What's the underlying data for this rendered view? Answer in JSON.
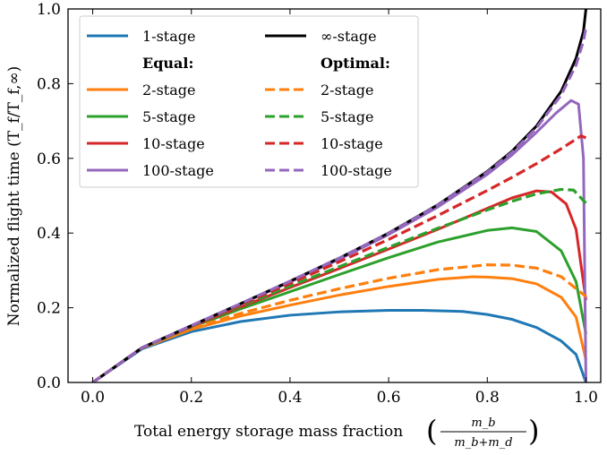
{
  "chart_data": {
    "type": "line",
    "title": "",
    "xlabel": "Total energy storage mass fraction",
    "xlabel_math": {
      "open": "(",
      "numerator": "m_b",
      "denominator": "m_b+m_d",
      "close": ")"
    },
    "ylabel": "Normalized flight time (T_f/T_f,∞)",
    "xlim": [
      -0.05,
      1.03
    ],
    "ylim": [
      0,
      1.0
    ],
    "xticks": [
      0.0,
      0.2,
      0.4,
      0.6,
      0.8,
      1.0
    ],
    "xtick_labels": [
      "0.0",
      "0.2",
      "0.4",
      "0.6",
      "0.8",
      "1.0"
    ],
    "yticks": [
      0.0,
      0.2,
      0.4,
      0.6,
      0.8,
      1.0
    ],
    "ytick_labels": [
      "0.0",
      "0.2",
      "0.4",
      "0.6",
      "0.8",
      "1.0"
    ],
    "grid": false,
    "legend": {
      "placement": "top-left",
      "heading_equal": "Equal:",
      "heading_optimal": "Optimal:"
    },
    "series": [
      {
        "name": "1-stage",
        "group": "equal",
        "color": "#1f77b4",
        "style": "solid",
        "x": [
          0,
          0.1,
          0.2,
          0.3,
          0.4,
          0.5,
          0.6,
          0.667,
          0.75,
          0.8,
          0.85,
          0.9,
          0.95,
          0.98,
          1.0
        ],
        "y": [
          0,
          0.09,
          0.136,
          0.163,
          0.18,
          0.189,
          0.193,
          0.193,
          0.19,
          0.182,
          0.169,
          0.147,
          0.111,
          0.075,
          0.0
        ]
      },
      {
        "name": "2-stage",
        "group": "equal",
        "color": "#ff7f0e",
        "style": "solid",
        "x": [
          0,
          0.1,
          0.2,
          0.3,
          0.4,
          0.5,
          0.6,
          0.7,
          0.77,
          0.8,
          0.85,
          0.9,
          0.95,
          0.98,
          1.0
        ],
        "y": [
          0,
          0.092,
          0.142,
          0.178,
          0.207,
          0.234,
          0.257,
          0.276,
          0.283,
          0.282,
          0.278,
          0.264,
          0.228,
          0.175,
          0.06
        ]
      },
      {
        "name": "5-stage",
        "group": "equal",
        "color": "#2ca02c",
        "style": "solid",
        "x": [
          0,
          0.1,
          0.2,
          0.3,
          0.4,
          0.5,
          0.6,
          0.7,
          0.8,
          0.85,
          0.9,
          0.95,
          0.98,
          1.0
        ],
        "y": [
          0,
          0.093,
          0.148,
          0.197,
          0.243,
          0.289,
          0.334,
          0.376,
          0.407,
          0.414,
          0.404,
          0.352,
          0.27,
          0.13
        ]
      },
      {
        "name": "10-stage",
        "group": "equal",
        "color": "#d62728",
        "style": "solid",
        "x": [
          0,
          0.1,
          0.2,
          0.3,
          0.4,
          0.5,
          0.6,
          0.7,
          0.8,
          0.85,
          0.9,
          0.93,
          0.96,
          0.98,
          1.0
        ],
        "y": [
          0,
          0.093,
          0.15,
          0.202,
          0.254,
          0.305,
          0.357,
          0.41,
          0.466,
          0.494,
          0.513,
          0.51,
          0.478,
          0.41,
          0.22
        ]
      },
      {
        "name": "100-stage",
        "group": "equal",
        "color": "#9467bd",
        "style": "solid",
        "x": [
          0,
          0.1,
          0.2,
          0.3,
          0.4,
          0.5,
          0.6,
          0.7,
          0.8,
          0.85,
          0.9,
          0.94,
          0.97,
          0.985,
          0.995,
          1.0
        ],
        "y": [
          0,
          0.093,
          0.152,
          0.21,
          0.269,
          0.33,
          0.396,
          0.47,
          0.557,
          0.609,
          0.67,
          0.722,
          0.755,
          0.745,
          0.6,
          0.0
        ]
      },
      {
        "name": "∞-stage",
        "group": "infinite",
        "color": "#000000",
        "style": "solid",
        "x": [
          0,
          0.1,
          0.2,
          0.3,
          0.4,
          0.5,
          0.6,
          0.7,
          0.8,
          0.85,
          0.9,
          0.95,
          0.98,
          0.995,
          1.0
        ],
        "y": [
          0,
          0.093,
          0.152,
          0.211,
          0.271,
          0.333,
          0.4,
          0.476,
          0.565,
          0.619,
          0.687,
          0.78,
          0.868,
          0.94,
          1.0
        ]
      },
      {
        "name": "2-stage",
        "group": "optimal",
        "color": "#ff7f0e",
        "style": "dashed",
        "x": [
          0,
          0.1,
          0.2,
          0.3,
          0.4,
          0.5,
          0.6,
          0.7,
          0.8,
          0.85,
          0.9,
          0.95,
          1.0
        ],
        "y": [
          0,
          0.093,
          0.145,
          0.185,
          0.22,
          0.251,
          0.279,
          0.302,
          0.315,
          0.314,
          0.306,
          0.283,
          0.23
        ]
      },
      {
        "name": "5-stage",
        "group": "optimal",
        "color": "#2ca02c",
        "style": "dashed",
        "x": [
          0,
          0.1,
          0.2,
          0.3,
          0.4,
          0.5,
          0.6,
          0.7,
          0.8,
          0.85,
          0.9,
          0.95,
          0.975,
          1.0
        ],
        "y": [
          0,
          0.093,
          0.15,
          0.205,
          0.258,
          0.31,
          0.362,
          0.413,
          0.462,
          0.485,
          0.505,
          0.517,
          0.515,
          0.48
        ]
      },
      {
        "name": "10-stage",
        "group": "optimal",
        "color": "#d62728",
        "style": "dashed",
        "x": [
          0,
          0.1,
          0.2,
          0.3,
          0.4,
          0.5,
          0.6,
          0.7,
          0.8,
          0.85,
          0.9,
          0.95,
          0.99,
          1.0
        ],
        "y": [
          0,
          0.093,
          0.151,
          0.208,
          0.265,
          0.323,
          0.383,
          0.447,
          0.514,
          0.549,
          0.586,
          0.626,
          0.66,
          0.655
        ]
      },
      {
        "name": "100-stage",
        "group": "optimal",
        "color": "#9467bd",
        "style": "dashed",
        "x": [
          0,
          0.1,
          0.2,
          0.3,
          0.4,
          0.5,
          0.6,
          0.7,
          0.8,
          0.85,
          0.9,
          0.95,
          0.98,
          0.995,
          1.0
        ],
        "y": [
          0,
          0.093,
          0.152,
          0.211,
          0.271,
          0.333,
          0.399,
          0.475,
          0.563,
          0.616,
          0.682,
          0.77,
          0.85,
          0.915,
          0.95
        ]
      }
    ]
  }
}
